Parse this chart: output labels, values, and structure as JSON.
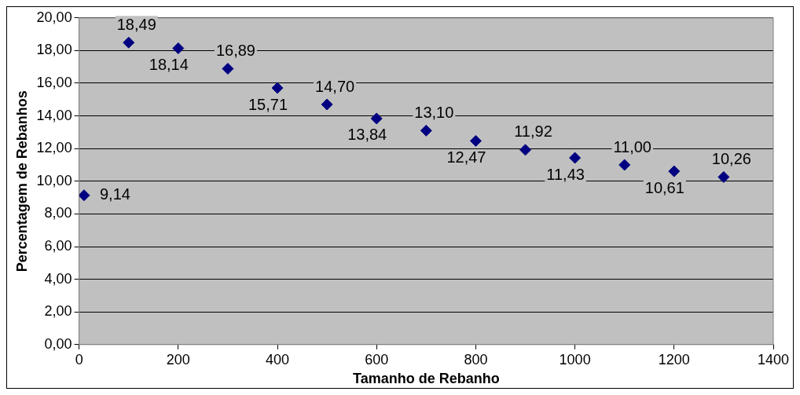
{
  "chart_data": {
    "type": "scatter",
    "xlabel": "Tamanho de Rebanho",
    "ylabel": "Percentagem de Rebanhos",
    "x": [
      10,
      100,
      200,
      300,
      400,
      500,
      600,
      700,
      800,
      900,
      1000,
      1100,
      1200,
      1300
    ],
    "series": [
      {
        "color": "#000080",
        "values": [
          9.14,
          18.49,
          18.14,
          16.89,
          15.71,
          14.7,
          13.84,
          13.1,
          12.47,
          11.92,
          11.43,
          11.0,
          10.61,
          10.26
        ],
        "value_labels": [
          "9,14",
          "18,49",
          "18,14",
          "16,89",
          "15,71",
          "14,70",
          "13,84",
          "13,10",
          "12,47",
          "11,92",
          "11,43",
          "11,00",
          "10,61",
          "10,26"
        ]
      }
    ],
    "xlim": [
      0,
      1400
    ],
    "xticks": [
      0,
      200,
      400,
      600,
      800,
      1000,
      1200,
      1400
    ],
    "ylim": [
      0,
      20
    ],
    "yticks": [
      {
        "value": 0,
        "label": "0,00"
      },
      {
        "value": 2,
        "label": "2,00"
      },
      {
        "value": 4,
        "label": "4,00"
      },
      {
        "value": 6,
        "label": "6,00"
      },
      {
        "value": 8,
        "label": "8,00"
      },
      {
        "value": 10,
        "label": "10,00"
      },
      {
        "value": 12,
        "label": "12,00"
      },
      {
        "value": 14,
        "label": "14,00"
      },
      {
        "value": 16,
        "label": "16,00"
      },
      {
        "value": 18,
        "label": "18,00"
      },
      {
        "value": 20,
        "label": "20,00"
      }
    ],
    "grid": "y",
    "marker": "diamond",
    "legend": false
  }
}
